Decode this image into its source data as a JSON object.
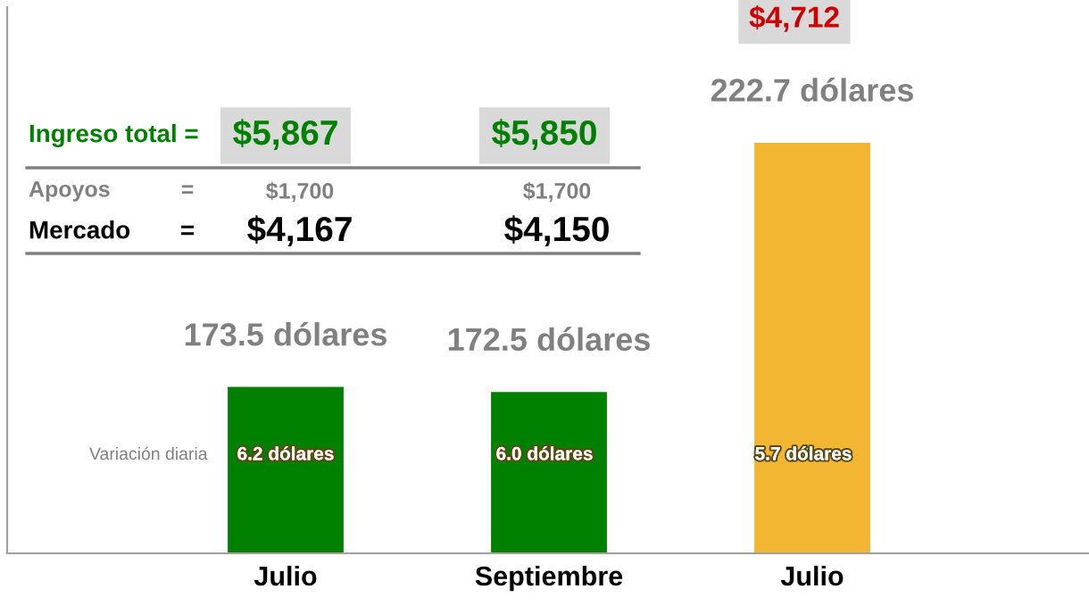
{
  "chart_data": {
    "type": "bar",
    "categories": [
      "Julio",
      "Septiembre",
      "Julio"
    ],
    "values": [
      173.5,
      172.5,
      222.7
    ],
    "colors": [
      "#008000",
      "#008000",
      "#f2b632"
    ],
    "value_labels": [
      "173.5 dólares",
      "172.5 dólares",
      "222.7 dólares"
    ],
    "ylim": [
      140,
      250
    ],
    "tick_labels": "x",
    "grid": false,
    "annotations": [
      "Ingreso total =",
      "$5,867",
      "$5,850",
      "$4,712",
      "Apoyos",
      "=",
      "$1,700",
      "$1,700",
      "Mercado",
      "=",
      "$4,167",
      "$4,150",
      "Variación diaria",
      "6.2 dólares",
      "6.0 dólares",
      "5.7 dólares"
    ]
  }
}
